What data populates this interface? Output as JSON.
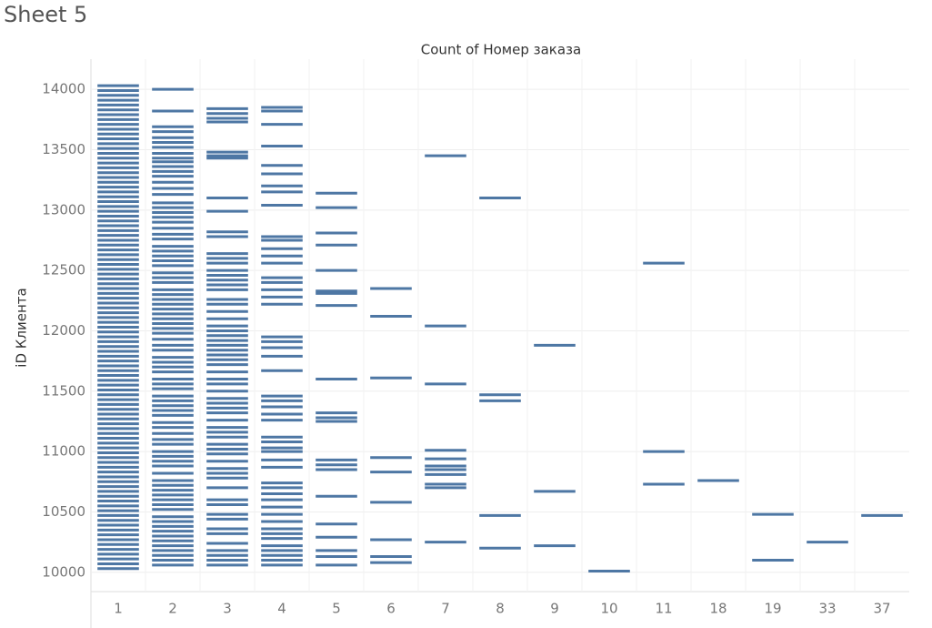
{
  "page_title": "Sheet 5",
  "chart_data": {
    "type": "strip",
    "title": "Count of Номер заказа",
    "y_label": "iD Клиента",
    "color": "#4e77a4",
    "grid": true,
    "ylim": [
      9840,
      14250
    ],
    "yticks": [
      10000,
      10500,
      11000,
      11500,
      12000,
      12500,
      13000,
      13500,
      14000
    ],
    "categories": [
      "1",
      "2",
      "3",
      "4",
      "5",
      "6",
      "7",
      "8",
      "9",
      "10",
      "11",
      "18",
      "19",
      "33",
      "37"
    ],
    "values": [
      [
        10030,
        10070,
        10110,
        10150,
        10190,
        10230,
        10270,
        10310,
        10350,
        10390,
        10430,
        10470,
        10510,
        10550,
        10590,
        10630,
        10670,
        10710,
        10750,
        10790,
        10830,
        10870,
        10910,
        10950,
        10990,
        11030,
        11070,
        11110,
        11150,
        11190,
        11230,
        11270,
        11310,
        11350,
        11390,
        11430,
        11470,
        11510,
        11550,
        11590,
        11630,
        11670,
        11710,
        11750,
        11790,
        11830,
        11870,
        11910,
        11950,
        11990,
        12030,
        12070,
        12110,
        12150,
        12190,
        12230,
        12270,
        12310,
        12350,
        12390,
        12430,
        12470,
        12510,
        12550,
        12590,
        12630,
        12670,
        12710,
        12750,
        12790,
        12830,
        12870,
        12910,
        12950,
        12990,
        13030,
        13070,
        13110,
        13150,
        13190,
        13230,
        13270,
        13310,
        13350,
        13390,
        13430,
        13470,
        13510,
        13550,
        13590,
        13630,
        13670,
        13710,
        13750,
        13790,
        13830,
        13870,
        13910,
        13950,
        13990,
        14030
      ],
      [
        14000,
        13820,
        13690,
        13650,
        13600,
        13560,
        13520,
        13470,
        13430,
        13400,
        13360,
        13320,
        13280,
        13230,
        13180,
        13130,
        13060,
        13020,
        12980,
        12940,
        12900,
        12850,
        12800,
        12760,
        12700,
        12660,
        12620,
        12580,
        12540,
        12480,
        12440,
        12400,
        12340,
        12300,
        12260,
        12220,
        12180,
        12140,
        12100,
        12060,
        12020,
        11980,
        11930,
        11880,
        11840,
        11780,
        11740,
        11700,
        11660,
        11600,
        11560,
        11520,
        11460,
        11420,
        11380,
        11340,
        11300,
        11240,
        11200,
        11150,
        11100,
        11060,
        11000,
        10960,
        10920,
        10880,
        10820,
        10760,
        10720,
        10680,
        10640,
        10600,
        10560,
        10520,
        10460,
        10420,
        10380,
        10340,
        10300,
        10260,
        10220,
        10180,
        10140,
        10100,
        10060
      ],
      [
        13840,
        13800,
        13760,
        13730,
        13480,
        13450,
        13430,
        13100,
        12990,
        12820,
        12780,
        12640,
        12600,
        12560,
        12500,
        12460,
        12420,
        12380,
        12340,
        12260,
        12220,
        12160,
        12100,
        12040,
        12000,
        11960,
        11920,
        11880,
        11840,
        11800,
        11760,
        11720,
        11660,
        11600,
        11560,
        11500,
        11440,
        11400,
        11360,
        11320,
        11260,
        11200,
        11160,
        11120,
        11060,
        11020,
        10980,
        10920,
        10860,
        10820,
        10780,
        10700,
        10600,
        10560,
        10480,
        10440,
        10360,
        10320,
        10240,
        10180,
        10140,
        10100,
        10060
      ],
      [
        13850,
        13820,
        13710,
        13530,
        13370,
        13300,
        13200,
        13150,
        13040,
        12780,
        12750,
        12680,
        12620,
        12560,
        12440,
        12400,
        12340,
        12280,
        12220,
        11950,
        11910,
        11860,
        11790,
        11670,
        11460,
        11420,
        11370,
        11310,
        11260,
        11120,
        11080,
        11030,
        11000,
        10930,
        10870,
        10740,
        10700,
        10650,
        10600,
        10540,
        10480,
        10420,
        10360,
        10320,
        10280,
        10220,
        10180,
        10140,
        10100,
        10060
      ],
      [
        13140,
        13020,
        12810,
        12710,
        12500,
        12330,
        12310,
        12210,
        11600,
        11320,
        11280,
        11250,
        10930,
        10890,
        10850,
        10630,
        10400,
        10290,
        10180,
        10130,
        10060
      ],
      [
        12350,
        12120,
        11610,
        10950,
        10830,
        10580,
        10270,
        10130,
        10080
      ],
      [
        13450,
        12040,
        11560,
        11010,
        10940,
        10880,
        10850,
        10810,
        10730,
        10700,
        10250
      ],
      [
        13100,
        11470,
        11420,
        10470,
        10200
      ],
      [
        11880,
        10670,
        10220
      ],
      [
        10010
      ],
      [
        12560,
        11000,
        10730
      ],
      [
        10760
      ],
      [
        10480,
        10100
      ],
      [
        10250
      ],
      [
        10470
      ]
    ]
  }
}
